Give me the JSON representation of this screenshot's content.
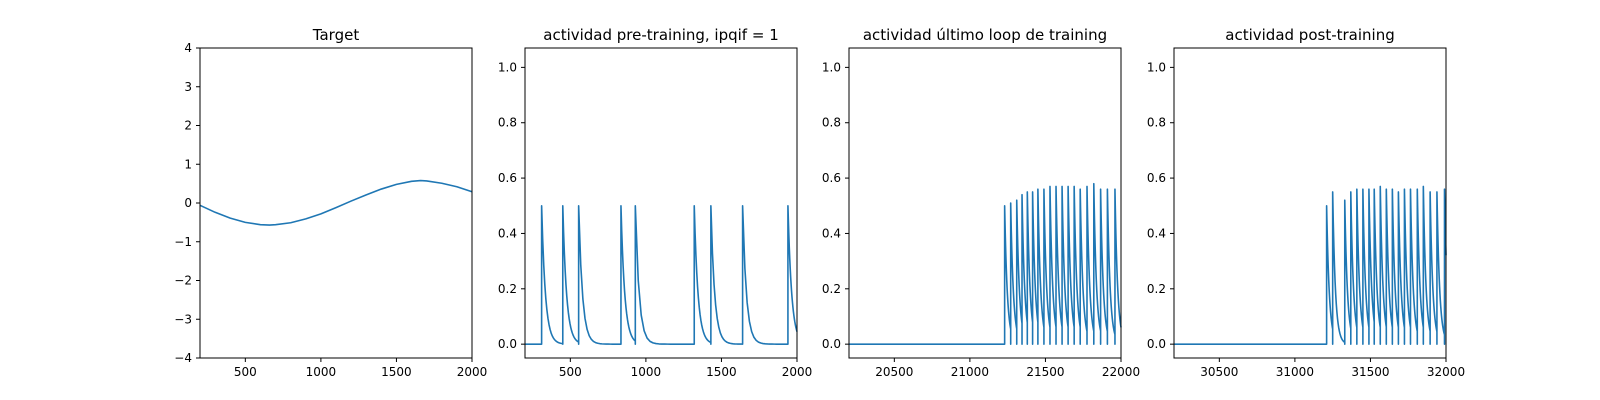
{
  "chart_data": [
    {
      "type": "line",
      "title": "Target",
      "xlim": [
        200,
        2000
      ],
      "ylim": [
        -4,
        4
      ],
      "xticks": [
        500,
        1000,
        1500,
        2000
      ],
      "xtick_labels": [
        "500",
        "1000",
        "1500",
        "2000"
      ],
      "yticks": [
        -4,
        -3,
        -2,
        -1,
        0,
        1,
        2,
        3,
        4
      ],
      "ytick_labels": [
        "−4",
        "−3",
        "−2",
        "−1",
        "0",
        "1",
        "2",
        "3",
        "4"
      ],
      "series": [
        {
          "color": "#1f77b4",
          "x": [
            200,
            300,
            400,
            500,
            600,
            660,
            700,
            800,
            900,
            1000,
            1100,
            1200,
            1300,
            1400,
            1500,
            1600,
            1660,
            1700,
            1800,
            1900,
            2000
          ],
          "y": [
            -0.06,
            -0.24,
            -0.39,
            -0.5,
            -0.56,
            -0.57,
            -0.56,
            -0.51,
            -0.41,
            -0.28,
            -0.12,
            0.05,
            0.21,
            0.36,
            0.48,
            0.56,
            0.58,
            0.57,
            0.51,
            0.42,
            0.29
          ]
        }
      ]
    },
    {
      "type": "line",
      "title": "actividad pre-training, ipqif = 1",
      "xlim": [
        200,
        2000
      ],
      "ylim": [
        -0.05,
        1.07
      ],
      "xticks": [
        500,
        1000,
        1500,
        2000
      ],
      "xtick_labels": [
        "500",
        "1000",
        "1500",
        "2000"
      ],
      "yticks": [
        0,
        0.2,
        0.4,
        0.6,
        0.8,
        1.0
      ],
      "ytick_labels": [
        "0.0",
        "0.2",
        "0.4",
        "0.6",
        "0.8",
        "1.0"
      ],
      "spike_train": {
        "baseline": 0,
        "decay": 25,
        "spikes": [
          {
            "t": 310,
            "h": 0.5
          },
          {
            "t": 450,
            "h": 0.5
          },
          {
            "t": 555,
            "h": 0.5
          },
          {
            "t": 835,
            "h": 0.5
          },
          {
            "t": 930,
            "h": 0.5
          },
          {
            "t": 1320,
            "h": 0.5
          },
          {
            "t": 1430,
            "h": 0.5
          },
          {
            "t": 1640,
            "h": 0.5
          },
          {
            "t": 1940,
            "h": 0.5
          }
        ]
      }
    },
    {
      "type": "line",
      "title": "actividad último loop de training",
      "xlim": [
        20200,
        22000
      ],
      "ylim": [
        -0.05,
        1.07
      ],
      "xticks": [
        20500,
        21000,
        21500,
        22000
      ],
      "xtick_labels": [
        "20500",
        "21000",
        "21500",
        "22000"
      ],
      "yticks": [
        0,
        0.2,
        0.4,
        0.6,
        0.8,
        1.0
      ],
      "ytick_labels": [
        "0.0",
        "0.2",
        "0.4",
        "0.6",
        "0.8",
        "1.0"
      ],
      "spike_train": {
        "baseline": 0,
        "decay": 18,
        "spikes": [
          {
            "t": 21230,
            "h": 0.5
          },
          {
            "t": 21270,
            "h": 0.51
          },
          {
            "t": 21310,
            "h": 0.52
          },
          {
            "t": 21345,
            "h": 0.54
          },
          {
            "t": 21380,
            "h": 0.55
          },
          {
            "t": 21415,
            "h": 0.55
          },
          {
            "t": 21450,
            "h": 0.56
          },
          {
            "t": 21490,
            "h": 0.56
          },
          {
            "t": 21530,
            "h": 0.57
          },
          {
            "t": 21570,
            "h": 0.57
          },
          {
            "t": 21610,
            "h": 0.57
          },
          {
            "t": 21650,
            "h": 0.57
          },
          {
            "t": 21690,
            "h": 0.57
          },
          {
            "t": 21730,
            "h": 0.56
          },
          {
            "t": 21775,
            "h": 0.57
          },
          {
            "t": 21820,
            "h": 0.58
          },
          {
            "t": 21865,
            "h": 0.56
          },
          {
            "t": 21910,
            "h": 0.56
          },
          {
            "t": 21960,
            "h": 0.56
          }
        ]
      }
    },
    {
      "type": "line",
      "title": "actividad post-training",
      "xlim": [
        30200,
        32000
      ],
      "ylim": [
        -0.05,
        1.07
      ],
      "xticks": [
        30500,
        31000,
        31500,
        32000
      ],
      "xtick_labels": [
        "30500",
        "31000",
        "31500",
        "32000"
      ],
      "yticks": [
        0,
        0.2,
        0.4,
        0.6,
        0.8,
        1.0
      ],
      "ytick_labels": [
        "0.0",
        "0.2",
        "0.4",
        "0.6",
        "0.8",
        "1.0"
      ],
      "spike_train": {
        "baseline": 0,
        "decay": 18,
        "spikes": [
          {
            "t": 31210,
            "h": 0.5
          },
          {
            "t": 31250,
            "h": 0.55
          },
          {
            "t": 31330,
            "h": 0.52
          },
          {
            "t": 31370,
            "h": 0.55
          },
          {
            "t": 31410,
            "h": 0.56
          },
          {
            "t": 31450,
            "h": 0.56
          },
          {
            "t": 31490,
            "h": 0.56
          },
          {
            "t": 31525,
            "h": 0.56
          },
          {
            "t": 31565,
            "h": 0.57
          },
          {
            "t": 31605,
            "h": 0.56
          },
          {
            "t": 31645,
            "h": 0.56
          },
          {
            "t": 31685,
            "h": 0.55
          },
          {
            "t": 31725,
            "h": 0.56
          },
          {
            "t": 31765,
            "h": 0.56
          },
          {
            "t": 31810,
            "h": 0.56
          },
          {
            "t": 31850,
            "h": 0.57
          },
          {
            "t": 31895,
            "h": 0.55
          },
          {
            "t": 31940,
            "h": 0.55
          },
          {
            "t": 31990,
            "h": 0.56
          }
        ]
      }
    }
  ]
}
